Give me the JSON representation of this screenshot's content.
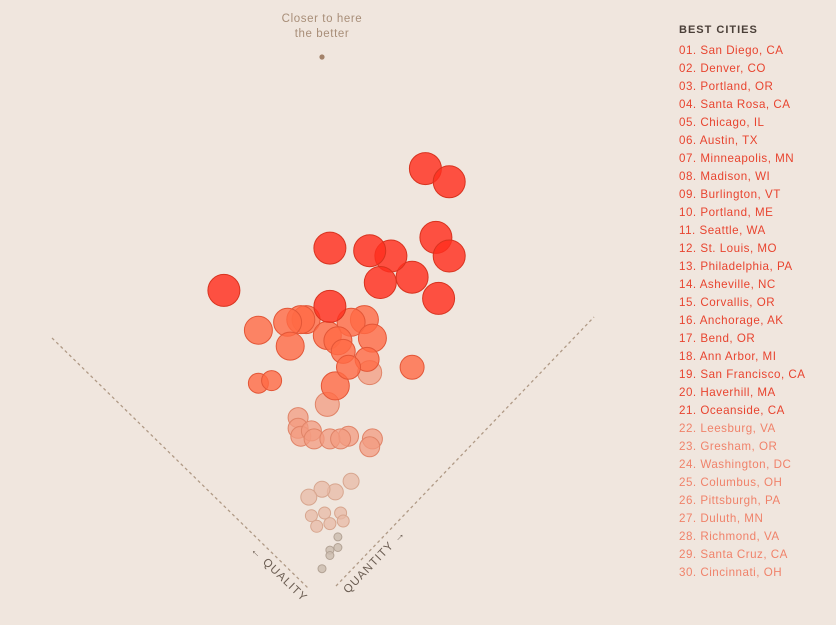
{
  "annotation": {
    "line1": "Closer to here",
    "line2": "the better"
  },
  "axis": {
    "quality_label": "← QUALITY",
    "quantity_label": "QUANTITY →"
  },
  "legend": {
    "title": "BEST CITIES",
    "items": [
      "01. San Diego, CA",
      "02. Denver, CO",
      "03. Portland, OR",
      "04. Santa Rosa, CA",
      "05. Chicago, IL",
      "06. Austin, TX",
      "07. Minneapolis, MN",
      "08. Madison, WI",
      "09. Burlington, VT",
      "10. Portland, ME",
      "11. Seattle, WA",
      "12. St. Louis, MO",
      "13. Philadelphia, PA",
      "14. Asheville, NC",
      "15. Corvallis, OR",
      "16. Anchorage, AK",
      "17. Bend, OR",
      "18. Ann Arbor, MI",
      "19. San Francisco, CA",
      "20. Haverhill, MA",
      "21. Oceanside, CA",
      "22. Leesburg, VA",
      "23. Gresham, OR",
      "24. Washington, DC",
      "25. Columbus, OH",
      "26. Pittsburgh, PA",
      "27. Duluth, MN",
      "28. Richmond, VA",
      "29. Santa Cruz, CA",
      "30. Cincinnati, OH"
    ]
  },
  "colors": {
    "background": "#f0e6de",
    "tier_top": "#ff2e1f",
    "tier_mid": "#ff6a45",
    "tier_low": "#f39b80",
    "tier_faint": "#e8b9a5",
    "tier_min": "#cdbdb0",
    "legend_strong": "#e8442f",
    "legend_faint": "#f0826a",
    "axis_line": "#b09a86"
  },
  "chart_data": {
    "type": "scatter",
    "title": "Best cities",
    "xlabel": "Quality",
    "ylabel": "Quantity",
    "encoding": "Rotated 45°: distance up-right along the diagonal = quantity, up-left = quality; point size and color reflect overall rank; top of the chart is best.",
    "axis_range": {
      "quality": [
        0,
        100
      ],
      "quantity": [
        0,
        100
      ]
    },
    "points": [
      {
        "quality": 57,
        "quantity": 96,
        "size": 8,
        "tier": 1
      },
      {
        "quality": 50,
        "quantity": 98,
        "size": 8,
        "tier": 1
      },
      {
        "quality": 42,
        "quantity": 85,
        "size": 8,
        "tier": 1
      },
      {
        "quality": 60,
        "quantity": 63,
        "size": 8,
        "tier": 1
      },
      {
        "quality": 39,
        "quantity": 73,
        "size": 8,
        "tier": 1
      },
      {
        "quality": 47,
        "quantity": 73,
        "size": 8,
        "tier": 1
      },
      {
        "quality": 52,
        "quantity": 70,
        "size": 8,
        "tier": 1
      },
      {
        "quality": 36,
        "quantity": 84,
        "size": 8,
        "tier": 1
      },
      {
        "quality": 44,
        "quantity": 66,
        "size": 8,
        "tier": 1
      },
      {
        "quality": 72,
        "quantity": 35,
        "size": 8,
        "tier": 1
      },
      {
        "quality": 49,
        "quantity": 52,
        "size": 8,
        "tier": 1
      },
      {
        "quality": 30,
        "quantity": 74,
        "size": 8,
        "tier": 1
      },
      {
        "quality": 51,
        "quantity": 45,
        "size": 7,
        "tier": 2
      },
      {
        "quality": 52,
        "quantity": 44,
        "size": 7,
        "tier": 2
      },
      {
        "quality": 54,
        "quantity": 41,
        "size": 7,
        "tier": 2
      },
      {
        "quality": 58,
        "quantity": 34,
        "size": 7,
        "tier": 2
      },
      {
        "quality": 49,
        "quantity": 37,
        "size": 7,
        "tier": 2
      },
      {
        "quality": 40,
        "quantity": 56,
        "size": 7,
        "tier": 2
      },
      {
        "quality": 42,
        "quantity": 53,
        "size": 7,
        "tier": 2
      },
      {
        "quality": 44,
        "quantity": 46,
        "size": 7,
        "tier": 2
      },
      {
        "quality": 35,
        "quantity": 54,
        "size": 7,
        "tier": 2
      },
      {
        "quality": 41,
        "quantity": 47,
        "size": 7,
        "tier": 2
      },
      {
        "quality": 33,
        "quantity": 38,
        "size": 7,
        "tier": 2
      },
      {
        "quality": 22,
        "quantity": 56,
        "size": 6,
        "tier": 2
      },
      {
        "quality": 32,
        "quantity": 49,
        "size": 6,
        "tier": 2
      },
      {
        "quality": 38,
        "quantity": 46,
        "size": 6,
        "tier": 2
      },
      {
        "quality": 34,
        "quantity": 44,
        "size": 6,
        "tier": 2
      },
      {
        "quality": 48,
        "quantity": 24,
        "size": 5,
        "tier": 2
      },
      {
        "quality": 46,
        "quantity": 27,
        "size": 5,
        "tier": 2
      },
      {
        "quality": 29,
        "quantity": 47,
        "size": 6,
        "tier": 3
      },
      {
        "quality": 31,
        "quantity": 33,
        "size": 6,
        "tier": 3
      },
      {
        "quality": 21,
        "quantity": 31,
        "size": 5,
        "tier": 3
      },
      {
        "quality": 34,
        "quantity": 25,
        "size": 5,
        "tier": 3
      },
      {
        "quality": 32,
        "quantity": 23,
        "size": 5,
        "tier": 3
      },
      {
        "quality": 30,
        "quantity": 22,
        "size": 5,
        "tier": 3
      },
      {
        "quality": 29,
        "quantity": 25,
        "size": 5,
        "tier": 3
      },
      {
        "quality": 27,
        "quantity": 24,
        "size": 5,
        "tier": 3
      },
      {
        "quality": 24,
        "quantity": 27,
        "size": 5,
        "tier": 3
      },
      {
        "quality": 22,
        "quantity": 29,
        "size": 5,
        "tier": 3
      },
      {
        "quality": 16,
        "quantity": 35,
        "size": 5,
        "tier": 3
      },
      {
        "quality": 15,
        "quantity": 33,
        "size": 5,
        "tier": 3
      },
      {
        "quality": 12,
        "quantity": 23,
        "size": 4,
        "tier": 4
      },
      {
        "quality": 13,
        "quantity": 18,
        "size": 4,
        "tier": 4
      },
      {
        "quality": 16,
        "quantity": 16,
        "size": 4,
        "tier": 4
      },
      {
        "quality": 17,
        "quantity": 12,
        "size": 4,
        "tier": 4
      },
      {
        "quality": 13,
        "quantity": 9,
        "size": 3,
        "tier": 4
      },
      {
        "quality": 11,
        "quantity": 12,
        "size": 3,
        "tier": 4
      },
      {
        "quality": 8,
        "quantity": 15,
        "size": 3,
        "tier": 4
      },
      {
        "quality": 6,
        "quantity": 14,
        "size": 3,
        "tier": 4
      },
      {
        "quality": 8,
        "quantity": 11,
        "size": 3,
        "tier": 4
      },
      {
        "quality": 10,
        "quantity": 8,
        "size": 3,
        "tier": 4
      },
      {
        "quality": 4,
        "quantity": 10,
        "size": 2,
        "tier": 5
      },
      {
        "quality": 3,
        "quantity": 6,
        "size": 2,
        "tier": 5
      },
      {
        "quality": 2,
        "quantity": 8,
        "size": 2,
        "tier": 5
      },
      {
        "quality": 2,
        "quantity": 5,
        "size": 2,
        "tier": 5
      },
      {
        "quality": 1,
        "quantity": 1,
        "size": 2,
        "tier": 5
      }
    ]
  }
}
